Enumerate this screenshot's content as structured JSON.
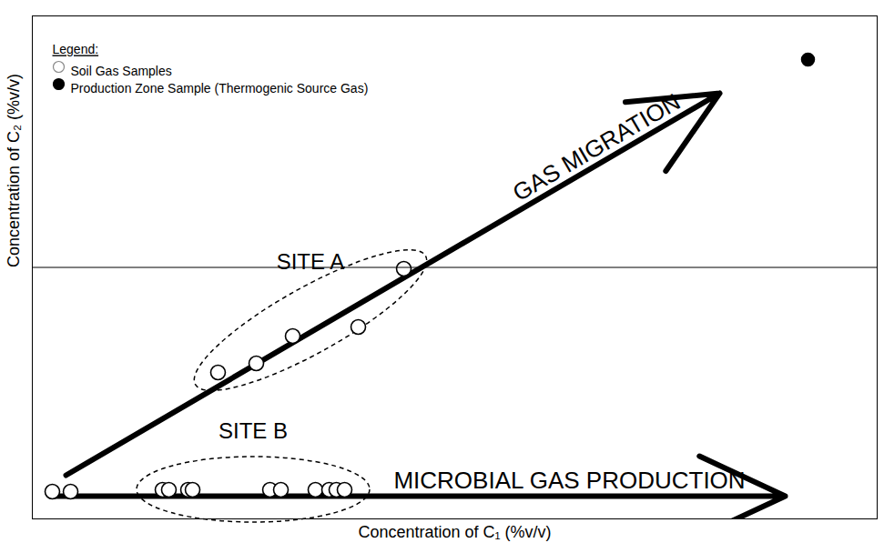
{
  "chart_data": {
    "type": "scatter",
    "x_label": "Concentration of C₁ (%v/v)",
    "y_label": "Concentration of C₂ (%v/v)",
    "xlim": [
      0,
      100
    ],
    "ylim": [
      0,
      100
    ],
    "xticks": [],
    "yticks": [],
    "tick_labels": false,
    "grid": false,
    "legend": "top-left",
    "legend_title": "Legend:",
    "series": [
      {
        "name": "Soil Gas Samples",
        "marker": "open circle",
        "color": "#000000",
        "x": [
          2.37,
          4.53,
          21.98,
          26.51,
          30.82,
          38.58,
          43.97,
          15.41,
          16.16,
          18.43,
          18.97,
          28.13,
          29.42,
          33.51,
          35.13,
          35.99,
          36.96
        ],
        "y": [
          5.42,
          5.42,
          29.11,
          30.92,
          36.35,
          38.16,
          49.73,
          5.79,
          5.79,
          5.79,
          5.79,
          5.79,
          5.79,
          5.79,
          5.79,
          5.79,
          5.79
        ],
        "site": [
          null,
          null,
          "SITE A",
          "SITE A",
          "SITE A",
          "SITE A",
          "SITE A",
          "SITE B",
          "SITE B",
          "SITE B",
          "SITE B",
          "SITE B",
          "SITE B",
          "SITE B",
          "SITE B",
          "SITE B",
          "SITE B"
        ]
      },
      {
        "name": "Production Zone Sample (Thermogenic Source Gas)",
        "marker": "filled circle",
        "color": "#000000",
        "x": [
          91.81
        ],
        "y": [
          91.32
        ]
      }
    ],
    "annotations": [
      {
        "text": "GAS MIGRATION",
        "x": 66.8,
        "y": 73.8,
        "arrow": {
          "x1": 3.99,
          "y1": 8.68,
          "x2": 81.36,
          "y2": 84.63
        }
      },
      {
        "text": "MICROBIAL GAS PRODUCTION",
        "x": 63.58,
        "y": 7.59,
        "arrow": {
          "x1": 2.37,
          "y1": 4.52,
          "x2": 89.12,
          "y2": 4.52
        }
      }
    ]
  }
}
